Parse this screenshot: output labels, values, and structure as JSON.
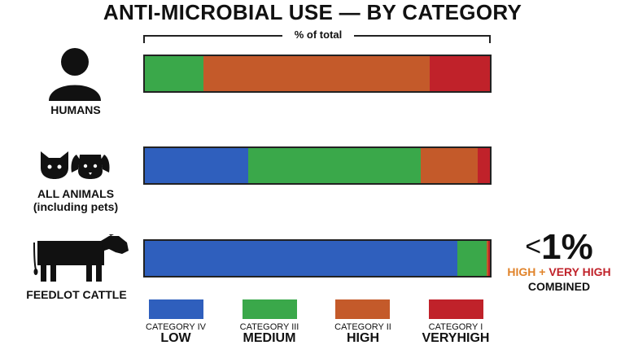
{
  "chart_data": {
    "type": "bar",
    "stacked": true,
    "orientation": "horizontal",
    "title": "ANTI-MICROBIAL USE — BY CATEGORY",
    "axis_label": "% of total",
    "categories": [
      "HUMANS",
      "ALL ANIMALS (including pets)",
      "FEEDLOT CATTLE"
    ],
    "series": [
      {
        "name": "LOW",
        "category_label": "CATEGORY IV",
        "color": "#2f5fbd",
        "values": [
          0,
          30,
          90.6
        ]
      },
      {
        "name": "MEDIUM",
        "category_label": "CATEGORY III",
        "color": "#3aa84a",
        "values": [
          17,
          50,
          8.5
        ]
      },
      {
        "name": "HIGH",
        "category_label": "CATEGORY II",
        "color": "#c45a2a",
        "values": [
          65.5,
          16.5,
          0.4
        ]
      },
      {
        "name": "VERYHIGH",
        "category_label": "CATEGORY I",
        "color": "#c0222a",
        "values": [
          17.5,
          3.5,
          0.5
        ]
      }
    ],
    "xlim": [
      0,
      100
    ],
    "legend_position": "bottom",
    "grid": false
  },
  "labels": {
    "title": "ANTI-MICROBIAL USE — BY CATEGORY",
    "axis": "% of total",
    "humans": "HUMANS",
    "animals_line1": "ALL ANIMALS",
    "animals_line2": "(including pets)",
    "cattle": "FEEDLOT CATTLE"
  },
  "legend": [
    {
      "category": "CATEGORY IV",
      "level": "LOW",
      "color": "#2f5fbd"
    },
    {
      "category": "CATEGORY III",
      "level": "MEDIUM",
      "color": "#3aa84a"
    },
    {
      "category": "CATEGORY II",
      "level": "HIGH",
      "color": "#c45a2a"
    },
    {
      "category": "CATEGORY I",
      "level": "VERYHIGH",
      "color": "#c0222a"
    }
  ],
  "annotation": {
    "lt": "<",
    "value": "1%",
    "high": "HIGH",
    "plus": " + ",
    "very_high": "VERY HIGH",
    "combined": "COMBINED",
    "high_color": "#e0832a",
    "very_high_color": "#c0222a"
  },
  "icons": [
    "person-icon",
    "cat-icon",
    "dog-icon",
    "cow-icon"
  ]
}
